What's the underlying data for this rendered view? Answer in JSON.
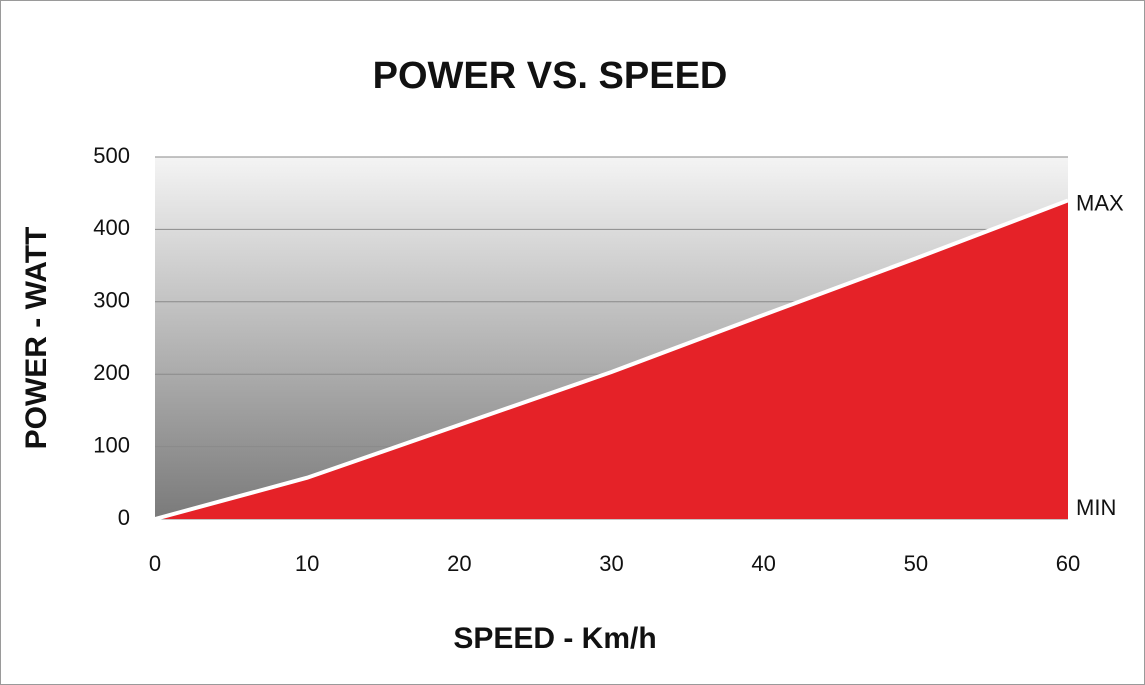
{
  "chart_data": {
    "type": "area",
    "title": "POWER VS. SPEED",
    "x_label": "SPEED - Km/h",
    "y_label": "POWER - WATT",
    "x": [
      0,
      10,
      20,
      30,
      40,
      50,
      60
    ],
    "values": [
      0,
      57,
      130,
      203,
      282,
      360,
      440
    ],
    "color": "#e52228",
    "line_color": "#ffffff",
    "xlim": [
      0,
      60
    ],
    "xticks": [
      0,
      10,
      20,
      30,
      40,
      50,
      60
    ],
    "ylim": [
      0,
      500
    ],
    "yticks": [
      0,
      100,
      200,
      300,
      400,
      500
    ],
    "grid": true,
    "max_label": "MAX",
    "min_label": "MIN"
  }
}
